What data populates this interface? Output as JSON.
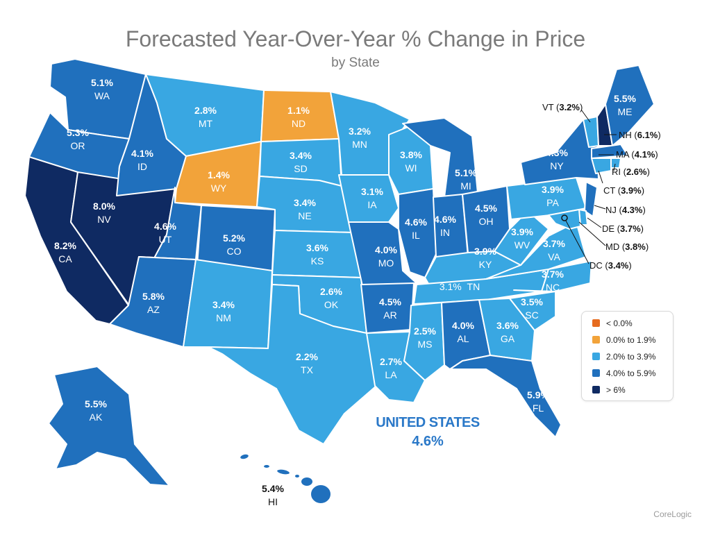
{
  "title": "Forecasted Year-Over-Year % Change in Price",
  "subtitle": "by State",
  "colors": {
    "neg": "#e66b1f",
    "low": "#f2a33a",
    "mid": "#39a7e2",
    "high": "#2070bd",
    "top": "#0f2a62"
  },
  "legend": [
    {
      "label": "< 0.0%",
      "color": "#e66b1f"
    },
    {
      "label": "0.0% to 1.9%",
      "color": "#f2a33a"
    },
    {
      "label": "2.0% to 3.9%",
      "color": "#39a7e2"
    },
    {
      "label": "4.0% to 5.9%",
      "color": "#2070bd"
    },
    {
      "label": "> 6%",
      "color": "#0f2a62"
    }
  ],
  "states": [
    {
      "abbr": "WA",
      "value": "5.1%"
    },
    {
      "abbr": "OR",
      "value": "5.3%"
    },
    {
      "abbr": "CA",
      "value": "8.2%"
    },
    {
      "abbr": "NV",
      "value": "8.0%"
    },
    {
      "abbr": "ID",
      "value": "4.1%"
    },
    {
      "abbr": "MT",
      "value": "2.8%"
    },
    {
      "abbr": "WY",
      "value": "1.4%"
    },
    {
      "abbr": "UT",
      "value": "4.6%"
    },
    {
      "abbr": "CO",
      "value": "5.2%"
    },
    {
      "abbr": "AZ",
      "value": "5.8%"
    },
    {
      "abbr": "NM",
      "value": "3.4%"
    },
    {
      "abbr": "ND",
      "value": "1.1%"
    },
    {
      "abbr": "SD",
      "value": "3.4%"
    },
    {
      "abbr": "NE",
      "value": "3.4%"
    },
    {
      "abbr": "KS",
      "value": "3.6%"
    },
    {
      "abbr": "OK",
      "value": "2.6%"
    },
    {
      "abbr": "TX",
      "value": "2.2%"
    },
    {
      "abbr": "MN",
      "value": "3.2%"
    },
    {
      "abbr": "IA",
      "value": "3.1%"
    },
    {
      "abbr": "MO",
      "value": "4.0%"
    },
    {
      "abbr": "AR",
      "value": "4.5%"
    },
    {
      "abbr": "LA",
      "value": "2.7%"
    },
    {
      "abbr": "WI",
      "value": "3.8%"
    },
    {
      "abbr": "IL",
      "value": "4.6%"
    },
    {
      "abbr": "MI",
      "value": "5.1%"
    },
    {
      "abbr": "IN",
      "value": "4.6%"
    },
    {
      "abbr": "OH",
      "value": "4.5%"
    },
    {
      "abbr": "KY",
      "value": "3.9%"
    },
    {
      "abbr": "TN",
      "value": "3.1%"
    },
    {
      "abbr": "MS",
      "value": "2.5%"
    },
    {
      "abbr": "AL",
      "value": "4.0%"
    },
    {
      "abbr": "GA",
      "value": "3.6%"
    },
    {
      "abbr": "FL",
      "value": "5.9%"
    },
    {
      "abbr": "SC",
      "value": "3.5%"
    },
    {
      "abbr": "NC",
      "value": "3.7%"
    },
    {
      "abbr": "VA",
      "value": "3.7%"
    },
    {
      "abbr": "WV",
      "value": "3.9%"
    },
    {
      "abbr": "PA",
      "value": "3.9%"
    },
    {
      "abbr": "NY",
      "value": "4.3%"
    },
    {
      "abbr": "ME",
      "value": "5.5%"
    },
    {
      "abbr": "AK",
      "value": "5.5%"
    },
    {
      "abbr": "HI",
      "value": "5.4%"
    },
    {
      "abbr": "VT",
      "value": "3.2%"
    },
    {
      "abbr": "NH",
      "value": "6.1%"
    },
    {
      "abbr": "MA",
      "value": "4.1%"
    },
    {
      "abbr": "RI",
      "value": "2.6%"
    },
    {
      "abbr": "CT",
      "value": "3.9%"
    },
    {
      "abbr": "NJ",
      "value": "4.3%"
    },
    {
      "abbr": "DE",
      "value": "3.7%"
    },
    {
      "abbr": "MD",
      "value": "3.8%"
    },
    {
      "abbr": "DC",
      "value": "3.4%"
    }
  ],
  "national": {
    "label": "UNITED STATES",
    "value": "4.6%"
  },
  "source": "CoreLogic"
}
